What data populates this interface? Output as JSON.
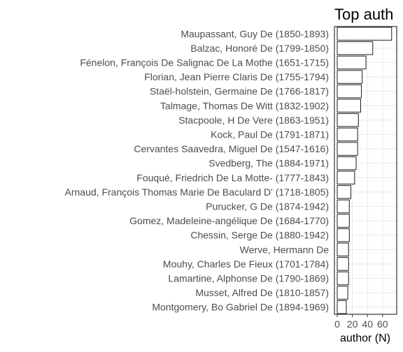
{
  "chart_data": {
    "type": "bar",
    "orientation": "horizontal",
    "title": "Top auth",
    "xlabel": "author (N)",
    "ylabel": "",
    "xlim": [
      0,
      75
    ],
    "xticks": [
      0,
      20,
      40,
      60
    ],
    "grid": true,
    "categories": [
      "Maupassant, Guy De (1850-1893)",
      "Balzac, Honoré De (1799-1850)",
      "Fénelon, François De Salignac De La Mothe (1651-1715)",
      "Florian, Jean Pierre Claris De (1755-1794)",
      "Staël-holstein, Germaine De (1766-1817)",
      "Talmage, Thomas De Witt (1832-1902)",
      "Stacpoole, H De Vere (1863-1951)",
      "Kock, Paul De (1791-1871)",
      "Cervantes Saavedra, Miguel De (1547-1616)",
      "Svedberg, The (1884-1971)",
      "Fouqué, Friedrich De La Motte- (1777-1843)",
      "Arnaud, François Thomas Marie De Baculard D' (1718-1805)",
      "Purucker, G De (1874-1942)",
      "Gomez, Madeleine-angélique De (1684-1770)",
      "Chessin, Serge De (1880-1942)",
      "Werve, Hermann De",
      "Mouhy, Charles De Fieux (1701-1784)",
      "Lamartine, Alphonse De (1790-1869)",
      "Musset, Alfred De (1810-1857)",
      "Montgomery, Bo Gabriel De (1894-1969)"
    ],
    "values": [
      72,
      47,
      38,
      33,
      32,
      31,
      28,
      27,
      27,
      25,
      23,
      18,
      16,
      16,
      16,
      15,
      15,
      15,
      14,
      12
    ]
  }
}
